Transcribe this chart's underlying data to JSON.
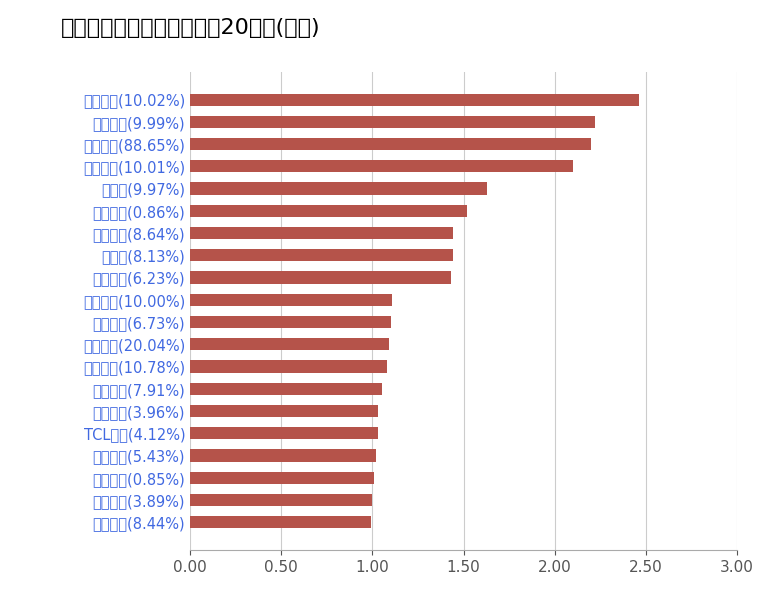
{
  "title": "今日主力资金净流入金额前20个股(亿元)",
  "categories": [
    "洪都航空(10.02%)",
    "钧达股份(9.99%)",
    "龙图光罩(88.65%)",
    "航天彩虹(10.01%)",
    "福斯特(9.97%)",
    "山西汾酒(0.86%)",
    "国机精工(8.64%)",
    "王府井(8.13%)",
    "三七互娱(6.23%)",
    "克来机电(10.00%)",
    "高德红外(6.73%)",
    "科德教育(20.04%)",
    "川宁生物(10.78%)",
    "上海沪工(7.91%)",
    "中际旭创(3.96%)",
    "TCL中环(4.12%)",
    "航天电子(5.43%)",
    "中兴通讯(0.85%)",
    "胜宏科技(3.89%)",
    "城建发展(8.44%)"
  ],
  "values": [
    2.46,
    2.22,
    2.2,
    2.1,
    1.63,
    1.52,
    1.44,
    1.44,
    1.43,
    1.11,
    1.1,
    1.09,
    1.08,
    1.05,
    1.03,
    1.03,
    1.02,
    1.01,
    1.0,
    0.99
  ],
  "label_colors": [
    "#4169E1",
    "#4169E1",
    "#4169E1",
    "#4169E1",
    "#4169E1",
    "#4169E1",
    "#4169E1",
    "#4169E1",
    "#4169E1",
    "#4169E1",
    "#4169E1",
    "#4169E1",
    "#4169E1",
    "#4169E1",
    "#4169E1",
    "#4169E1",
    "#4169E1",
    "#4169E1",
    "#4169E1",
    "#4169E1"
  ],
  "bar_color": "#B5534A",
  "xlim": [
    0,
    3.0
  ],
  "xticks": [
    0.0,
    0.5,
    1.0,
    1.5,
    2.0,
    2.5,
    3.0
  ],
  "xtick_labels": [
    "0.00",
    "0.50",
    "1.00",
    "1.50",
    "2.00",
    "2.50",
    "3.00"
  ],
  "background_color": "#FFFFFF",
  "title_fontsize": 16,
  "tick_fontsize": 11,
  "label_fontsize": 10.5
}
